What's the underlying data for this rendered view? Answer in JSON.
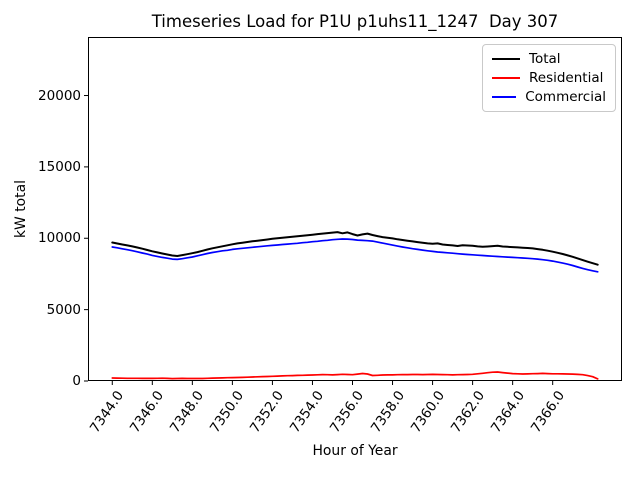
{
  "chart_data": {
    "type": "line",
    "title": "Timeseries Load for P1U p1uhs11_1247  Day 307",
    "xlabel": "Hour of Year",
    "ylabel": "kW total",
    "grid": false,
    "legend": {
      "position": "upper right",
      "entries": [
        "Total",
        "Residential",
        "Commercial"
      ]
    },
    "ylim": [
      0,
      24100
    ],
    "xlim_index": [
      -4.85,
      101.85
    ],
    "x_step": 0.25,
    "y_ticks": [
      0,
      5000,
      10000,
      15000,
      20000
    ],
    "y_tick_labels": [
      "0",
      "5000",
      "10000",
      "15000",
      "20000"
    ],
    "x_ticks": [
      7344,
      7346,
      7348,
      7350,
      7352,
      7354,
      7356,
      7358,
      7360,
      7362,
      7364,
      7366
    ],
    "x_tick_labels": [
      "7344.0",
      "7346.0",
      "7348.0",
      "7350.0",
      "7352.0",
      "7354.0",
      "7356.0",
      "7358.0",
      "7360.0",
      "7362.0",
      "7364.0",
      "7366.0"
    ],
    "x": [
      7344.0,
      7344.25,
      7344.5,
      7344.75,
      7345.0,
      7345.25,
      7345.5,
      7345.75,
      7346.0,
      7346.25,
      7346.5,
      7346.75,
      7347.0,
      7347.25,
      7347.5,
      7347.75,
      7348.0,
      7348.25,
      7348.5,
      7348.75,
      7349.0,
      7349.25,
      7349.5,
      7349.75,
      7350.0,
      7350.25,
      7350.5,
      7350.75,
      7351.0,
      7351.25,
      7351.5,
      7351.75,
      7352.0,
      7352.25,
      7352.5,
      7352.75,
      7353.0,
      7353.25,
      7353.5,
      7353.75,
      7354.0,
      7354.25,
      7354.5,
      7354.75,
      7355.0,
      7355.25,
      7355.5,
      7355.75,
      7356.0,
      7356.25,
      7356.5,
      7356.75,
      7357.0,
      7357.25,
      7357.5,
      7357.75,
      7358.0,
      7358.25,
      7358.5,
      7358.75,
      7359.0,
      7359.25,
      7359.5,
      7359.75,
      7360.0,
      7360.25,
      7360.5,
      7360.75,
      7361.0,
      7361.25,
      7361.5,
      7361.75,
      7362.0,
      7362.25,
      7362.5,
      7362.75,
      7363.0,
      7363.25,
      7363.5,
      7363.75,
      7364.0,
      7364.25,
      7364.5,
      7364.75,
      7365.0,
      7365.25,
      7365.5,
      7365.75,
      7366.0,
      7366.25,
      7366.5,
      7366.75,
      7367.0,
      7367.25,
      7367.5,
      7367.75,
      7368.0,
      7368.25
    ],
    "series": [
      {
        "name": "Total",
        "color": "#000000",
        "values": [
          9700,
          9630,
          9560,
          9500,
          9430,
          9350,
          9270,
          9180,
          9090,
          9010,
          8930,
          8860,
          8790,
          8760,
          8820,
          8880,
          8950,
          9030,
          9120,
          9210,
          9300,
          9370,
          9440,
          9510,
          9580,
          9640,
          9690,
          9740,
          9790,
          9830,
          9870,
          9915,
          9960,
          9995,
          10030,
          10065,
          10100,
          10140,
          10180,
          10215,
          10250,
          10290,
          10330,
          10365,
          10400,
          10430,
          10350,
          10410,
          10290,
          10190,
          10270,
          10330,
          10230,
          10150,
          10080,
          10030,
          9990,
          9930,
          9880,
          9830,
          9780,
          9730,
          9680,
          9640,
          9610,
          9640,
          9560,
          9530,
          9500,
          9460,
          9510,
          9490,
          9470,
          9430,
          9400,
          9420,
          9450,
          9470,
          9420,
          9400,
          9380,
          9360,
          9340,
          9320,
          9290,
          9240,
          9190,
          9130,
          9060,
          8980,
          8900,
          8800,
          8700,
          8590,
          8470,
          8360,
          8250,
          8150
        ]
      },
      {
        "name": "Residential",
        "color": "#ff0000",
        "values": [
          210,
          205,
          195,
          192,
          190,
          188,
          185,
          182,
          180,
          190,
          195,
          182,
          170,
          175,
          180,
          178,
          175,
          172,
          178,
          188,
          200,
          208,
          215,
          228,
          240,
          248,
          255,
          268,
          280,
          292,
          305,
          318,
          330,
          342,
          355,
          368,
          380,
          390,
          400,
          410,
          420,
          432,
          445,
          438,
          430,
          450,
          470,
          455,
          440,
          480,
          525,
          490,
          385,
          400,
          420,
          425,
          430,
          438,
          445,
          450,
          455,
          452,
          450,
          455,
          460,
          452,
          445,
          438,
          430,
          438,
          445,
          458,
          470,
          505,
          540,
          578,
          615,
          630,
          590,
          555,
          520,
          505,
          490,
          500,
          510,
          520,
          530,
          518,
          505,
          502,
          500,
          490,
          480,
          460,
          440,
          380,
          300,
          150
        ]
      },
      {
        "name": "Commercial",
        "color": "#0000ff",
        "values": [
          9390,
          9330,
          9260,
          9200,
          9130,
          9050,
          8970,
          8890,
          8800,
          8730,
          8660,
          8600,
          8540,
          8520,
          8570,
          8630,
          8690,
          8770,
          8850,
          8930,
          9000,
          9060,
          9120,
          9160,
          9220,
          9260,
          9300,
          9330,
          9370,
          9400,
          9440,
          9470,
          9500,
          9530,
          9560,
          9590,
          9620,
          9650,
          9690,
          9720,
          9760,
          9790,
          9830,
          9860,
          9900,
          9930,
          9950,
          9940,
          9910,
          9870,
          9850,
          9830,
          9800,
          9730,
          9660,
          9590,
          9520,
          9450,
          9390,
          9330,
          9270,
          9220,
          9170,
          9120,
          9080,
          9040,
          9010,
          8980,
          8950,
          8920,
          8890,
          8865,
          8840,
          8815,
          8790,
          8765,
          8740,
          8720,
          8700,
          8680,
          8660,
          8640,
          8620,
          8595,
          8570,
          8540,
          8500,
          8455,
          8400,
          8330,
          8260,
          8180,
          8090,
          7990,
          7890,
          7800,
          7720,
          7650
        ]
      }
    ]
  }
}
